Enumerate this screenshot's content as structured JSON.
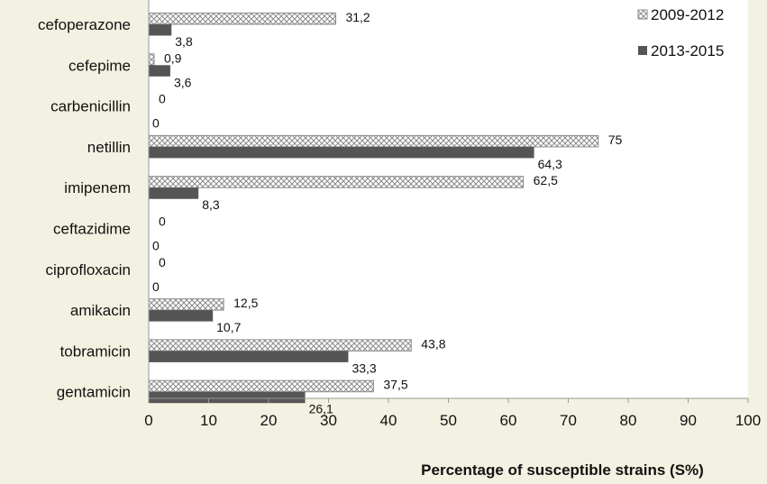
{
  "chart_data": {
    "type": "bar",
    "orientation": "horizontal",
    "categories": [
      "cefoperazone",
      "cefepime",
      "carbenicillin",
      "netillin",
      "imipenem",
      "ceftazidime",
      "ciprofloxacin",
      "amikacin",
      "tobramicin",
      "gentamicin"
    ],
    "series": [
      {
        "name": "2009-2012",
        "pattern": "crosshatch",
        "color": "#8a8a8a",
        "values": [
          31.2,
          0.9,
          0,
          75,
          62.5,
          0,
          0,
          12.5,
          43.8,
          37.5
        ],
        "labels": [
          "31,2",
          "0,9",
          "0",
          "75",
          "62,5",
          "0",
          "0",
          "12,5",
          "43,8",
          "37,5"
        ]
      },
      {
        "name": "2013-2015",
        "pattern": "solid",
        "color": "#555555",
        "values": [
          3.8,
          3.6,
          0,
          64.3,
          8.3,
          0,
          0,
          10.7,
          33.3,
          26.1
        ],
        "labels": [
          "3,8",
          "3,6",
          "0",
          "64,3",
          "8,3",
          "0",
          "0",
          "10,7",
          "33,3",
          "26,1"
        ]
      }
    ],
    "xlim": [
      0,
      100
    ],
    "xticks": [
      0,
      10,
      20,
      30,
      40,
      50,
      60,
      70,
      80,
      90,
      100
    ],
    "xlabel": "Percentage of susceptible strains (S%)",
    "ylabel": "",
    "title": "",
    "legend_position": "top-right",
    "grid": false,
    "background": "#f3f1e1",
    "plot_background": "#ffffff"
  }
}
